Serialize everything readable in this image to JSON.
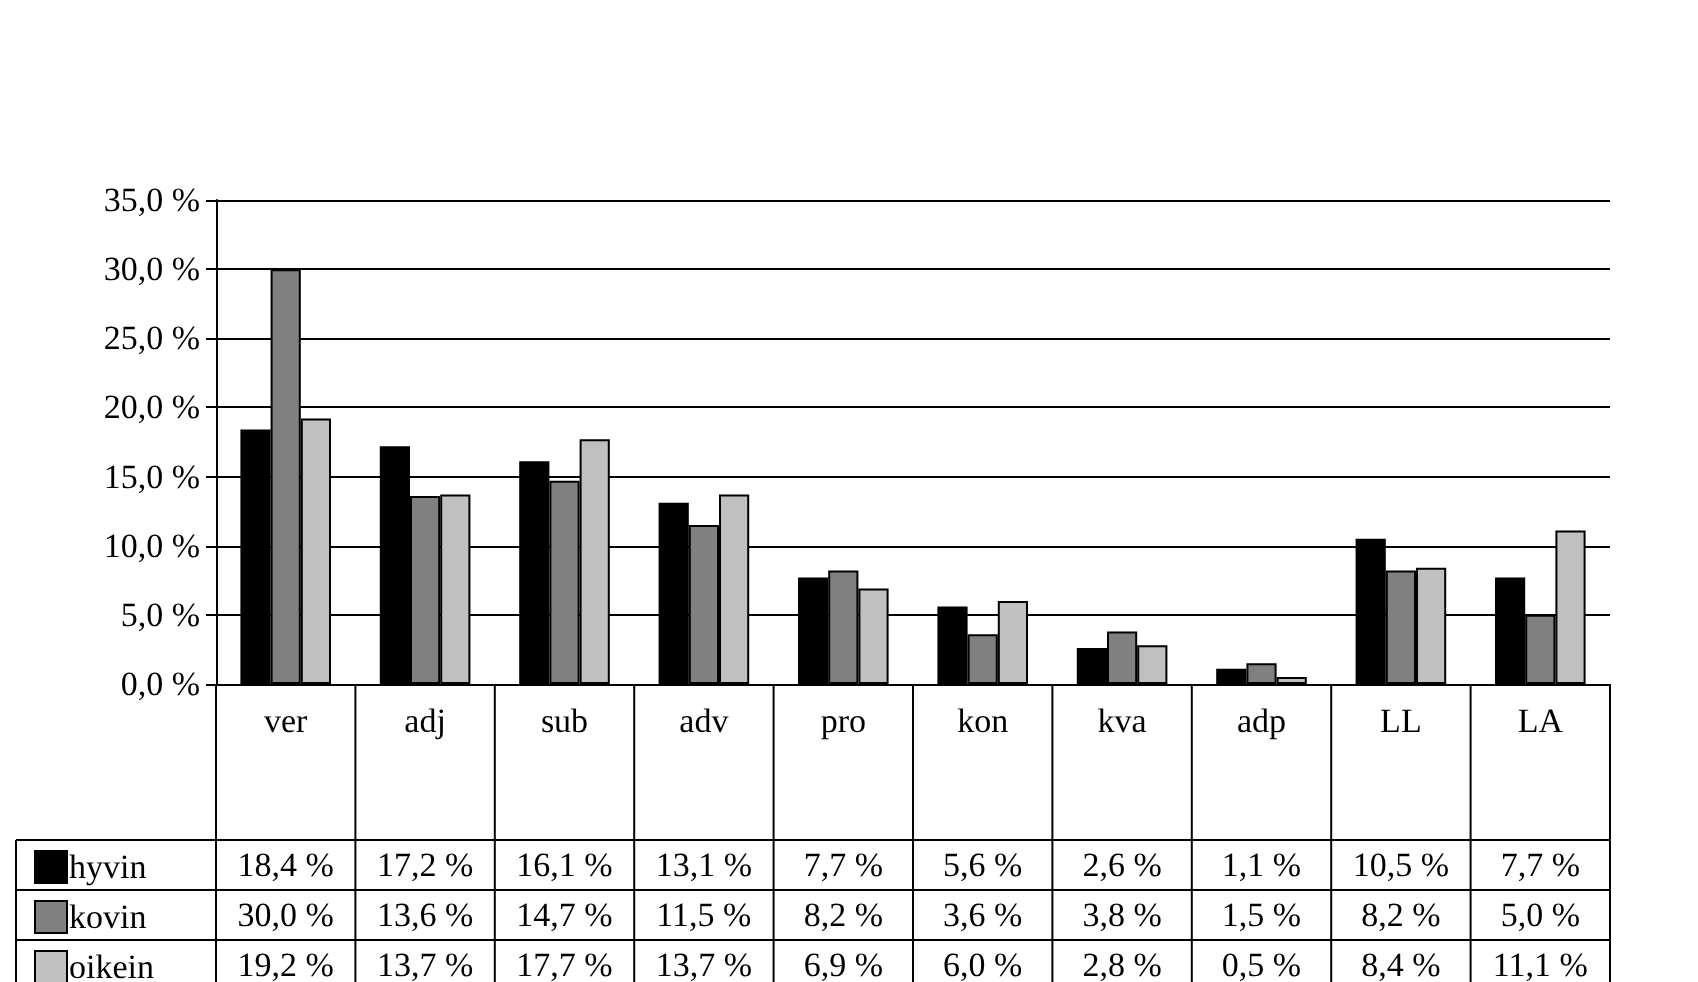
{
  "chart_data": {
    "type": "bar",
    "categories": [
      "ver",
      "adj",
      "sub",
      "adv",
      "pro",
      "kon",
      "kva",
      "adp",
      "LL",
      "LA"
    ],
    "series": [
      {
        "name": "hyvin",
        "color": "#000000",
        "values": [
          18.4,
          17.2,
          16.1,
          13.1,
          7.7,
          5.6,
          2.6,
          1.1,
          10.5,
          7.7
        ],
        "value_labels": [
          "18,4 %",
          "17,2 %",
          "16,1 %",
          "13,1 %",
          "7,7 %",
          "5,6 %",
          "2,6 %",
          "1,1 %",
          "10,5 %",
          "7,7 %"
        ]
      },
      {
        "name": "kovin",
        "color": "#808080",
        "values": [
          30.0,
          13.6,
          14.7,
          11.5,
          8.2,
          3.6,
          3.8,
          1.5,
          8.2,
          5.0
        ],
        "value_labels": [
          "30,0 %",
          "13,6 %",
          "14,7 %",
          "11,5 %",
          "8,2 %",
          "3,6 %",
          "3,8 %",
          "1,5 %",
          "8,2 %",
          "5,0 %"
        ]
      },
      {
        "name": "oikein",
        "color": "#c0c0c0",
        "values": [
          19.2,
          13.7,
          17.7,
          13.7,
          6.9,
          6.0,
          2.8,
          0.5,
          8.4,
          11.1
        ],
        "value_labels": [
          "19,2 %",
          "13,7 %",
          "17,7 %",
          "13,7 %",
          "6,9 %",
          "6,0 %",
          "2,8 %",
          "0,5 %",
          "8,4 %",
          "11,1 %"
        ]
      }
    ],
    "ylim": [
      0,
      35
    ],
    "yticks": [
      {
        "value": 0,
        "label": "0,0 %"
      },
      {
        "value": 5,
        "label": "5,0 %"
      },
      {
        "value": 10,
        "label": "10,0 %"
      },
      {
        "value": 15,
        "label": "15,0 %"
      },
      {
        "value": 20,
        "label": "20,0 %"
      },
      {
        "value": 25,
        "label": "25,0 %"
      },
      {
        "value": 30,
        "label": "30,0 %"
      },
      {
        "value": 35,
        "label": "35,0 %"
      }
    ],
    "grid": "y",
    "legend": "bottom left"
  }
}
